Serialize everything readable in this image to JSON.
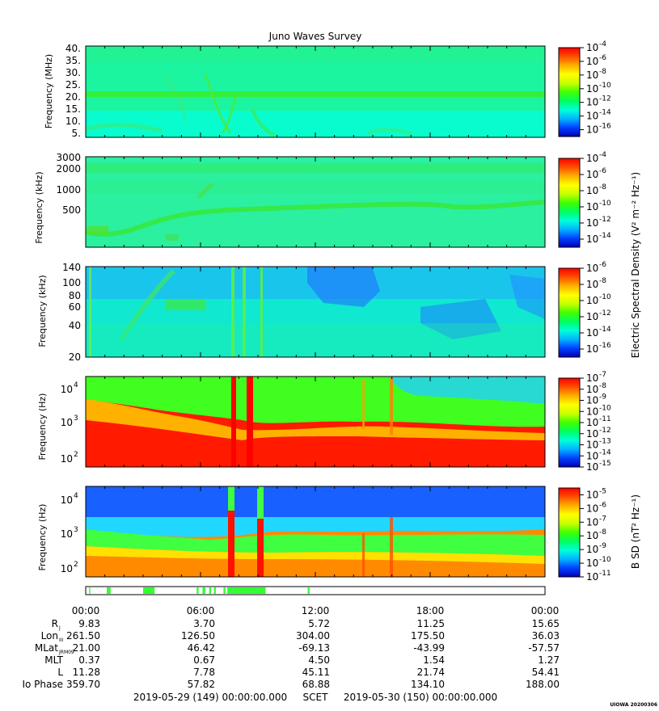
{
  "chart_data": {
    "type": "heatmap",
    "title": "Juno Waves Survey",
    "watermark": "UIOWA 20200306",
    "x_axis": {
      "tick_labels": [
        "00:00",
        "06:00",
        "12:00",
        "18:00",
        "00:00"
      ],
      "range_hours": [
        0,
        24
      ],
      "start": "2019-05-29 (149) 00:00:00.000",
      "scale_label": "SCET",
      "end": "2019-05-30 (150) 00:00:00.000"
    },
    "panels": [
      {
        "name": "waves-hfr-high",
        "ylabel": "Frequency (MHz)",
        "yscale": "linear",
        "yticks": [
          "40.",
          "35.",
          "30.",
          "25.",
          "20.",
          "15.",
          "10.",
          "5."
        ],
        "ylim": [
          3.5,
          41
        ],
        "colorbar": {
          "exponents": [
            "-4",
            "-6",
            "-8",
            "-10",
            "-12",
            "-14",
            "-16"
          ],
          "range": [
            -17,
            -4
          ]
        }
      },
      {
        "name": "waves-hfr-low",
        "ylabel": "Frequency (kHz)",
        "yscale": "log",
        "yticks": [
          "3000",
          "2000",
          "1000",
          "500"
        ],
        "ylim": [
          140,
          3000
        ],
        "colorbar": {
          "exponents": [
            "-4",
            "-6",
            "-8",
            "-10",
            "-12",
            "-14"
          ],
          "range": [
            -15,
            -4
          ]
        }
      },
      {
        "name": "waves-lfr-high",
        "ylabel": "Frequency (kHz)",
        "yscale": "log",
        "yticks": [
          "140",
          "100",
          "80",
          "60",
          "40",
          "20"
        ],
        "ylim": [
          20,
          140
        ],
        "colorbar": {
          "exponents": [
            "-6",
            "-8",
            "-10",
            "-12",
            "-14",
            "-16"
          ],
          "range": [
            -17,
            -6
          ]
        }
      },
      {
        "name": "waves-lfr-e",
        "ylabel": "Frequency (Hz)",
        "yscale": "log",
        "yticks": [
          "10^4",
          "10^3",
          "10^2"
        ],
        "ylim": [
          50,
          20000
        ],
        "colorbar": {
          "exponents": [
            "-7",
            "-8",
            "-9",
            "-10",
            "-11",
            "-12",
            "-13",
            "-14",
            "-15"
          ],
          "range": [
            -15,
            -7
          ]
        }
      },
      {
        "name": "waves-lfr-b",
        "ylabel": "Frequency (Hz)",
        "yscale": "log",
        "yticks": [
          "10^4",
          "10^3",
          "10^2"
        ],
        "ylim": [
          50,
          20000
        ],
        "colorbar": {
          "exponents": [
            "-5",
            "-6",
            "-7",
            "-8",
            "-9",
            "-10",
            "-11"
          ],
          "range": [
            -11,
            -4.5
          ]
        }
      }
    ],
    "colorbar_label_e": "Electric Spectral Density (V² m⁻² Hz⁻¹)",
    "colorbar_label_b": "B SD (nT² Hz⁻¹)",
    "mode_bar_segments_hours": [
      [
        0.18,
        0.24
      ],
      [
        1.1,
        1.3
      ],
      [
        3.0,
        3.6
      ],
      [
        5.8,
        5.9
      ],
      [
        6.1,
        6.25
      ],
      [
        6.45,
        6.55
      ],
      [
        6.7,
        6.8
      ],
      [
        7.2,
        7.3
      ],
      [
        7.4,
        9.4
      ],
      [
        11.6,
        11.7
      ]
    ],
    "ephemeris": {
      "rows": [
        {
          "label": "R",
          "sub": "J",
          "values": [
            "9.83",
            "3.70",
            "5.72",
            "11.25",
            "15.65"
          ]
        },
        {
          "label": "Lon",
          "sub": "III",
          "values": [
            "261.50",
            "126.50",
            "304.00",
            "175.50",
            "36.03"
          ]
        },
        {
          "label": "MLat",
          "sub": "JRM09",
          "values": [
            "21.00",
            "46.42",
            "-69.13",
            "-43.99",
            "-57.57"
          ]
        },
        {
          "label": "MLT",
          "sub": "",
          "values": [
            "0.37",
            "0.67",
            "4.50",
            "1.54",
            "1.27"
          ]
        },
        {
          "label": "L",
          "sub": "",
          "values": [
            "11.28",
            "7.78",
            "45.11",
            "21.74",
            "54.41"
          ]
        },
        {
          "label": "Io Phase",
          "sub": "",
          "values": [
            "359.70",
            "57.82",
            "68.88",
            "134.10",
            "188.00"
          ]
        }
      ]
    }
  },
  "colors": {
    "spectral": [
      "#0000b4",
      "#0040ff",
      "#00b4ff",
      "#00ffd8",
      "#00ff60",
      "#40ff00",
      "#c8ff00",
      "#ffff00",
      "#ffb000",
      "#ff5000",
      "#ff0000"
    ],
    "mode_bar": "#33ff33"
  }
}
